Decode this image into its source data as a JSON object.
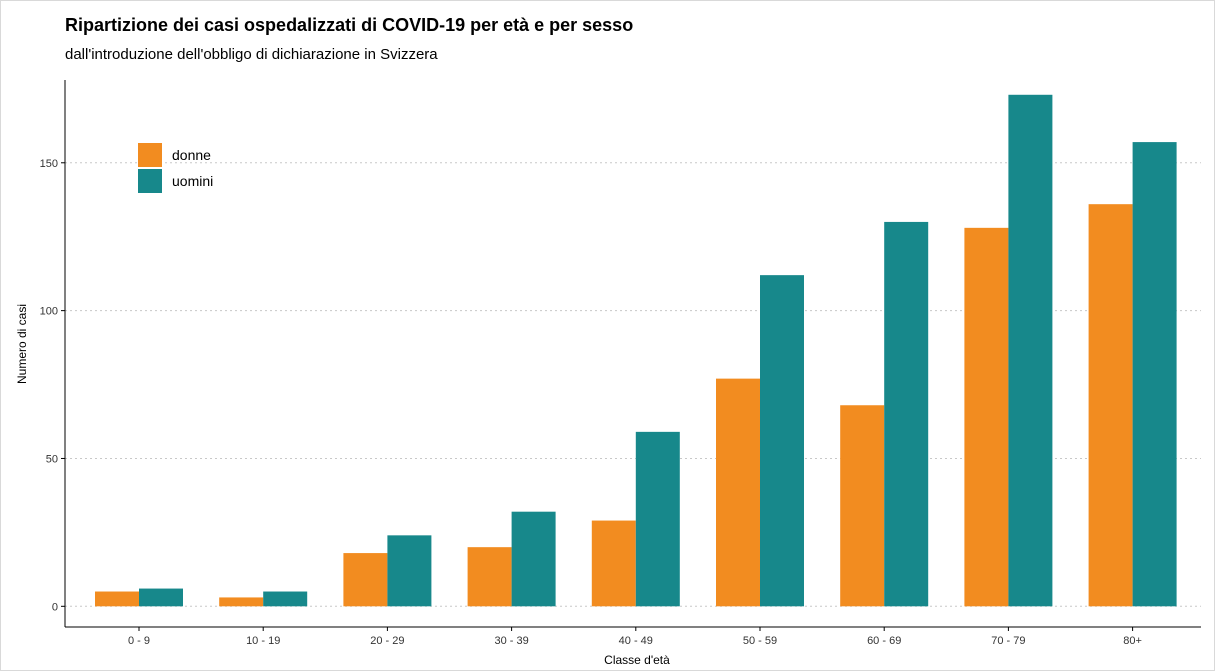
{
  "chart_data": {
    "type": "bar",
    "title": "Ripartizione dei casi ospedalizzati di COVID-19 per età e per sesso",
    "subtitle": "dall'introduzione dell'obbligo di dichiarazione in Svizzera",
    "xlabel": "Classe d'età",
    "ylabel": "Numero di casi",
    "categories": [
      "0 - 9",
      "10 - 19",
      "20 - 29",
      "30 - 39",
      "40 - 49",
      "50 - 59",
      "60 - 69",
      "70 - 79",
      "80+"
    ],
    "series": [
      {
        "name": "donne",
        "color": "#F28C20",
        "values": [
          5,
          3,
          18,
          20,
          29,
          77,
          68,
          128,
          136
        ]
      },
      {
        "name": "uomini",
        "color": "#17888B",
        "values": [
          6,
          5,
          24,
          32,
          59,
          112,
          130,
          173,
          157
        ]
      }
    ],
    "ylim": [
      -7,
      178
    ],
    "yticks": [
      0,
      50,
      100,
      150
    ],
    "grid": "horizontal dotted",
    "legend_position": "top-left"
  }
}
